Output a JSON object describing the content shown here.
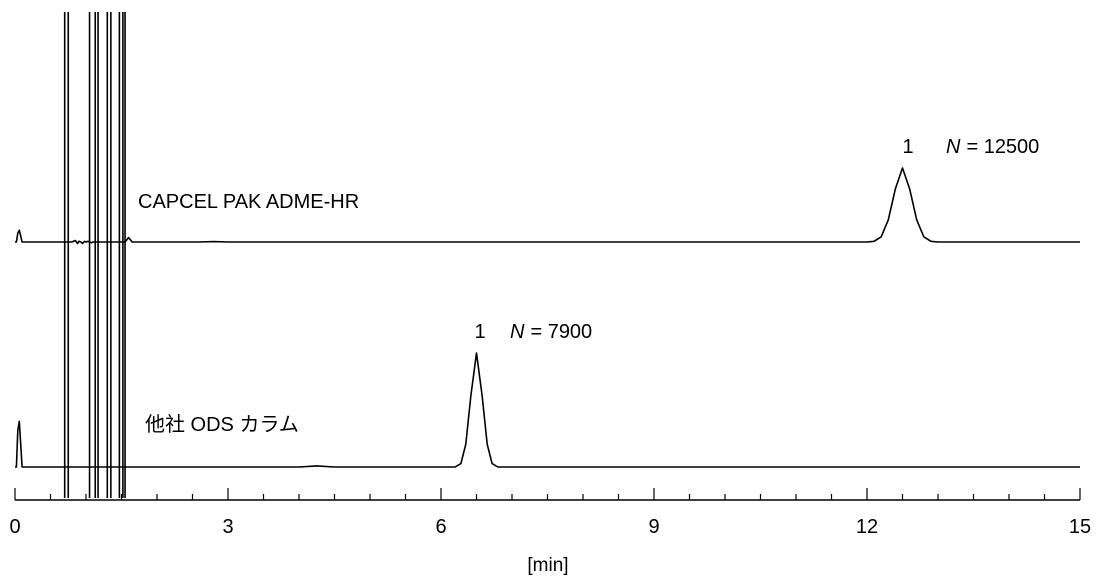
{
  "chart_data": {
    "type": "line",
    "xlabel": "[min]",
    "xlim": [
      0,
      15
    ],
    "major_ticks": [
      0,
      3,
      6,
      9,
      12,
      15
    ],
    "minor_tick_step": 0.5,
    "series": [
      {
        "name": "CAPCEL PAK ADME-HR",
        "peak": {
          "label": "1",
          "retention_time": 12.5,
          "plates_label": "N",
          "plates_value": "= 12500"
        },
        "points": [
          [
            0.0,
            0.0
          ],
          [
            0.02,
            0.0
          ],
          [
            0.04,
            0.12
          ],
          [
            0.06,
            0.16
          ],
          [
            0.08,
            0.08
          ],
          [
            0.1,
            0.0
          ],
          [
            0.5,
            0.0
          ],
          [
            0.8,
            0.0
          ],
          [
            0.85,
            0.02
          ],
          [
            0.88,
            -0.02
          ],
          [
            0.9,
            0.01
          ],
          [
            0.93,
            0.0
          ],
          [
            0.95,
            -0.02
          ],
          [
            0.98,
            0.01
          ],
          [
            1.0,
            0.0
          ],
          [
            1.03,
            0.01
          ],
          [
            1.05,
            0.0
          ],
          [
            1.08,
            -0.01
          ],
          [
            1.1,
            0.0
          ],
          [
            1.55,
            0.0
          ],
          [
            1.6,
            0.06
          ],
          [
            1.65,
            0.0
          ],
          [
            2.6,
            0.0
          ],
          [
            2.8,
            0.006
          ],
          [
            3.0,
            0.0
          ],
          [
            12.0,
            0.0
          ],
          [
            12.1,
            0.01
          ],
          [
            12.2,
            0.07
          ],
          [
            12.3,
            0.3
          ],
          [
            12.4,
            0.72
          ],
          [
            12.5,
            1.0
          ],
          [
            12.6,
            0.72
          ],
          [
            12.7,
            0.3
          ],
          [
            12.8,
            0.07
          ],
          [
            12.9,
            0.01
          ],
          [
            13.0,
            0.0
          ],
          [
            15.0,
            0.0
          ]
        ]
      },
      {
        "name": "他社 ODS カラム",
        "peak": {
          "label": "1",
          "retention_time": 6.5,
          "plates_label": "N",
          "plates_value": "= 7900"
        },
        "points": [
          [
            0.0,
            0.0
          ],
          [
            0.02,
            0.0
          ],
          [
            0.04,
            0.32
          ],
          [
            0.06,
            0.4
          ],
          [
            0.08,
            0.2
          ],
          [
            0.1,
            0.0
          ],
          [
            1.55,
            0.0
          ],
          [
            4.0,
            0.0
          ],
          [
            4.25,
            0.01
          ],
          [
            4.5,
            0.0
          ],
          [
            6.2,
            0.0
          ],
          [
            6.28,
            0.03
          ],
          [
            6.35,
            0.2
          ],
          [
            6.42,
            0.62
          ],
          [
            6.5,
            1.0
          ],
          [
            6.58,
            0.62
          ],
          [
            6.65,
            0.2
          ],
          [
            6.72,
            0.03
          ],
          [
            6.8,
            0.0
          ],
          [
            15.0,
            0.0
          ]
        ]
      }
    ],
    "solvent_spikes": [
      0.7,
      0.75,
      1.05,
      1.13,
      1.17,
      1.3,
      1.35,
      1.47,
      1.52,
      1.55
    ]
  }
}
